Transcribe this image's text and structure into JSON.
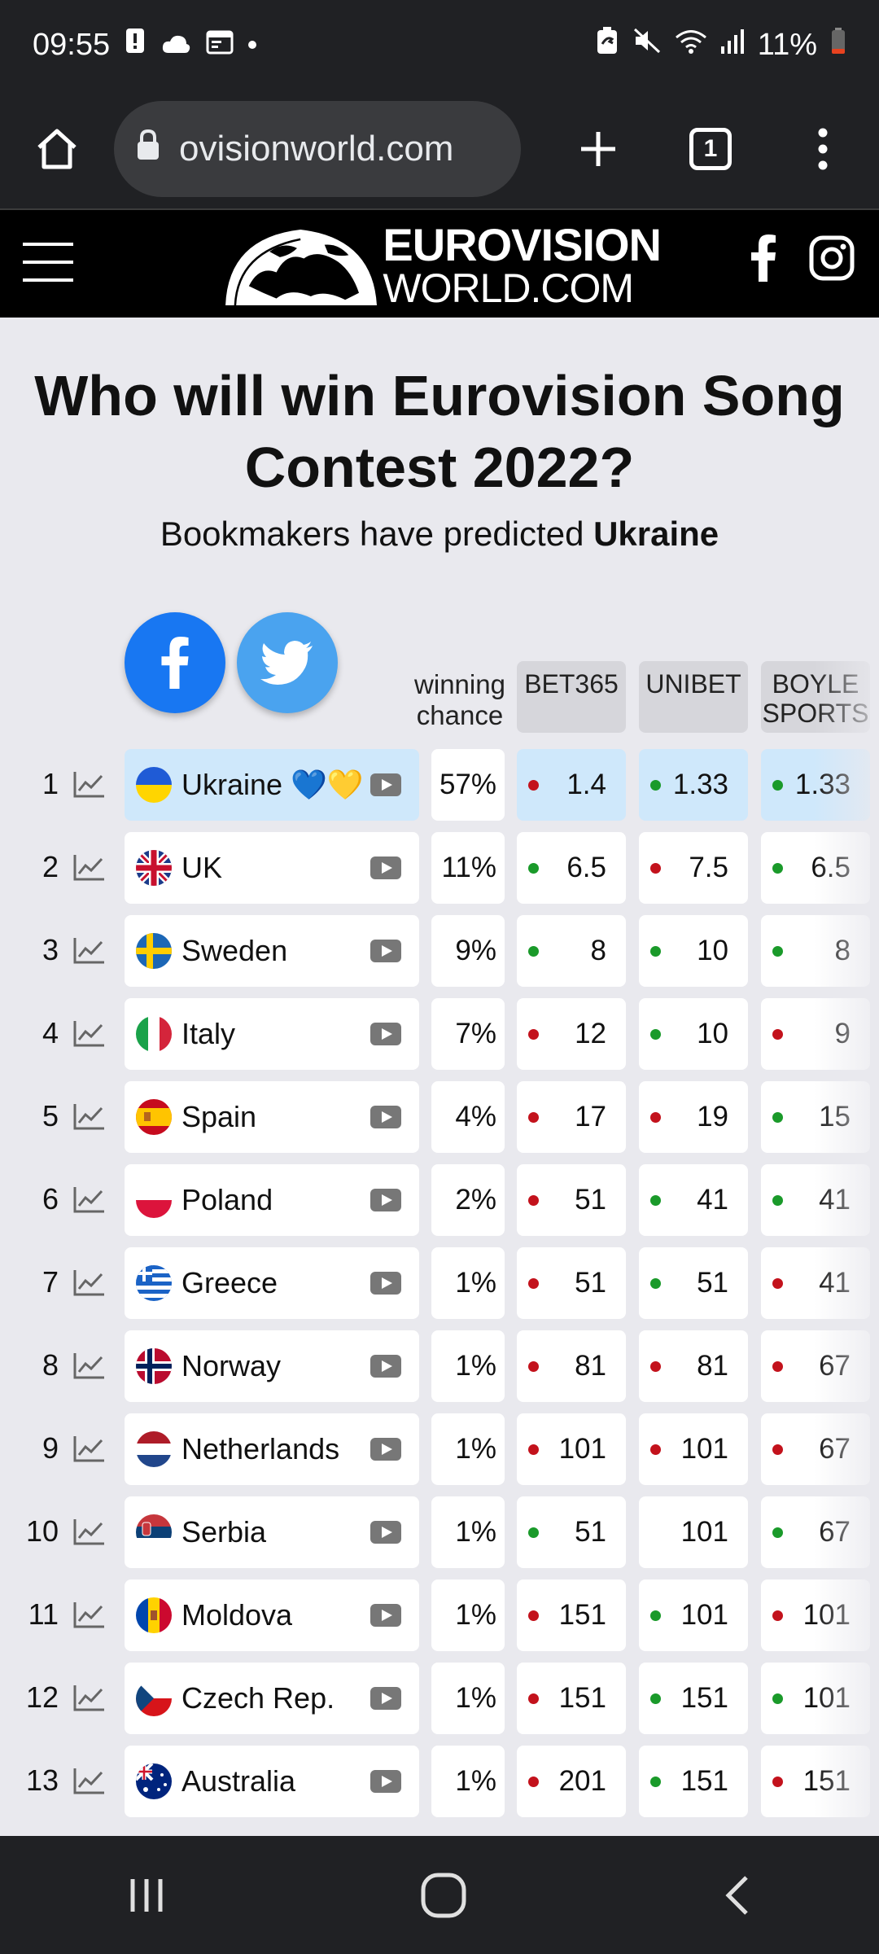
{
  "status_bar": {
    "time": "09:55",
    "battery": "11%",
    "icons": [
      "alert-icon",
      "cloud-icon",
      "calendar-icon",
      "dot-icon",
      "battery-saver-icon",
      "mute-icon",
      "wifi-icon",
      "signal-icon",
      "battery-icon"
    ]
  },
  "browser": {
    "url": "ovisionworld.com",
    "tab_count": "1"
  },
  "site": {
    "logo_line1": "EUROVISION",
    "logo_line2": "WORLD.COM"
  },
  "page": {
    "title": "Who will win Eurovision Song Contest 2022?",
    "subtitle_prefix": "Bookmakers have predicted ",
    "subtitle_bold": "Ukraine"
  },
  "table": {
    "chance_header_line1": "winning",
    "chance_header_line2": "chance",
    "bookmakers": [
      {
        "line1": "BET365",
        "line2": ""
      },
      {
        "line1": "UNIBET",
        "line2": ""
      },
      {
        "line1": "BOYLE",
        "line2": "SPORTS"
      }
    ],
    "rows": [
      {
        "rank": "1",
        "country": "Ukraine 💙💛",
        "flag": "ua",
        "chance": "57%",
        "odds": [
          {
            "v": "1.4",
            "d": "r"
          },
          {
            "v": "1.33",
            "d": "g"
          },
          {
            "v": "1.33",
            "d": "g"
          }
        ]
      },
      {
        "rank": "2",
        "country": "UK",
        "flag": "gb",
        "chance": "11%",
        "odds": [
          {
            "v": "6.5",
            "d": "g"
          },
          {
            "v": "7.5",
            "d": "r"
          },
          {
            "v": "6.5",
            "d": "g"
          }
        ]
      },
      {
        "rank": "3",
        "country": "Sweden",
        "flag": "se",
        "chance": "9%",
        "odds": [
          {
            "v": "8",
            "d": "g"
          },
          {
            "v": "10",
            "d": "g"
          },
          {
            "v": "8",
            "d": "g"
          }
        ]
      },
      {
        "rank": "4",
        "country": "Italy",
        "flag": "it",
        "chance": "7%",
        "odds": [
          {
            "v": "12",
            "d": "r"
          },
          {
            "v": "10",
            "d": "g"
          },
          {
            "v": "9",
            "d": "r"
          }
        ]
      },
      {
        "rank": "5",
        "country": "Spain",
        "flag": "es",
        "chance": "4%",
        "odds": [
          {
            "v": "17",
            "d": "r"
          },
          {
            "v": "19",
            "d": "r"
          },
          {
            "v": "15",
            "d": "g"
          }
        ]
      },
      {
        "rank": "6",
        "country": "Poland",
        "flag": "pl",
        "chance": "2%",
        "odds": [
          {
            "v": "51",
            "d": "r"
          },
          {
            "v": "41",
            "d": "g"
          },
          {
            "v": "41",
            "d": "g"
          }
        ]
      },
      {
        "rank": "7",
        "country": "Greece",
        "flag": "gr",
        "chance": "1%",
        "odds": [
          {
            "v": "51",
            "d": "r"
          },
          {
            "v": "51",
            "d": "g"
          },
          {
            "v": "41",
            "d": "r"
          }
        ]
      },
      {
        "rank": "8",
        "country": "Norway",
        "flag": "no",
        "chance": "1%",
        "odds": [
          {
            "v": "81",
            "d": "r"
          },
          {
            "v": "81",
            "d": "r"
          },
          {
            "v": "67",
            "d": "r"
          }
        ]
      },
      {
        "rank": "9",
        "country": "Netherlands",
        "flag": "nl",
        "chance": "1%",
        "odds": [
          {
            "v": "101",
            "d": "r"
          },
          {
            "v": "101",
            "d": "r"
          },
          {
            "v": "67",
            "d": "r"
          }
        ]
      },
      {
        "rank": "10",
        "country": "Serbia",
        "flag": "rs",
        "chance": "1%",
        "odds": [
          {
            "v": "51",
            "d": "g"
          },
          {
            "v": "101",
            "d": ""
          },
          {
            "v": "67",
            "d": "g"
          }
        ]
      },
      {
        "rank": "11",
        "country": "Moldova",
        "flag": "md",
        "chance": "1%",
        "odds": [
          {
            "v": "151",
            "d": "r"
          },
          {
            "v": "101",
            "d": "g"
          },
          {
            "v": "101",
            "d": "r"
          }
        ]
      },
      {
        "rank": "12",
        "country": "Czech Rep.",
        "flag": "cz",
        "chance": "1%",
        "odds": [
          {
            "v": "151",
            "d": "r"
          },
          {
            "v": "151",
            "d": "g"
          },
          {
            "v": "101",
            "d": "g"
          }
        ]
      },
      {
        "rank": "13",
        "country": "Australia",
        "flag": "au",
        "chance": "1%",
        "odds": [
          {
            "v": "201",
            "d": "r"
          },
          {
            "v": "151",
            "d": "g"
          },
          {
            "v": "151",
            "d": "r"
          }
        ]
      }
    ]
  },
  "colors": {
    "highlight_row": "#cfe8fb",
    "trend_up": "#1a9a2a",
    "trend_down": "#c3121c",
    "facebook": "#1877f2",
    "twitter": "#4aa3ef"
  }
}
